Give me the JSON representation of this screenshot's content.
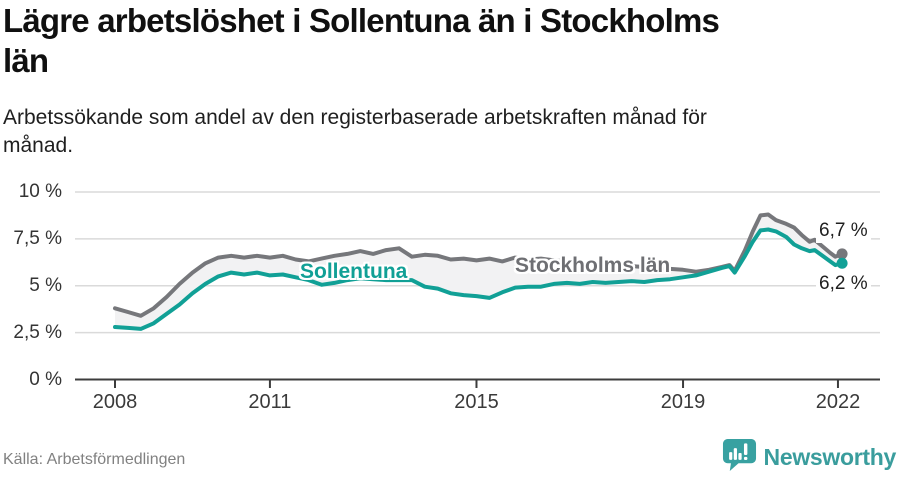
{
  "header": {
    "title_lines": [
      "Lägre arbetslöshet i Sollentuna än i Stockholms",
      "län"
    ],
    "subtitle_lines": [
      "Arbetssökande som andel av den registerbaserade arbetskraften månad för",
      "månad."
    ]
  },
  "chart_data": {
    "type": "line",
    "title": "Lägre arbetslöshet i Sollentuna än i Stockholms län",
    "xlabel": "",
    "ylabel": "",
    "ylim": [
      0,
      10
    ],
    "xlim": [
      2008,
      2022.3
    ],
    "grid": true,
    "legend_position": "inline-labels",
    "area_between_fill": "#f2f2f3",
    "x": [
      2008.0,
      2008.25,
      2008.5,
      2008.75,
      2009.0,
      2009.25,
      2009.5,
      2009.75,
      2010.0,
      2010.25,
      2010.5,
      2010.75,
      2011.0,
      2011.25,
      2011.5,
      2011.75,
      2012.0,
      2012.25,
      2012.5,
      2012.75,
      2013.0,
      2013.25,
      2013.5,
      2013.75,
      2014.0,
      2014.25,
      2014.5,
      2014.75,
      2015.0,
      2015.25,
      2015.5,
      2015.75,
      2016.0,
      2016.25,
      2016.5,
      2016.75,
      2017.0,
      2017.25,
      2017.5,
      2017.75,
      2018.0,
      2018.25,
      2018.5,
      2018.75,
      2019.0,
      2019.25,
      2019.5,
      2019.75,
      2019.9,
      2020.0,
      2020.2,
      2020.35,
      2020.5,
      2020.65,
      2020.8,
      2021.0,
      2021.15,
      2021.3,
      2021.45,
      2021.55,
      2021.7,
      2021.85,
      2021.95,
      2022.08
    ],
    "series": [
      {
        "name": "Stockholms län",
        "color": "#76777b",
        "end_label": "6,7 %",
        "values": [
          3.8,
          3.6,
          3.4,
          3.8,
          4.4,
          5.1,
          5.7,
          6.2,
          6.5,
          6.6,
          6.5,
          6.6,
          6.5,
          6.6,
          6.4,
          6.3,
          6.45,
          6.6,
          6.7,
          6.85,
          6.7,
          6.9,
          7.0,
          6.55,
          6.65,
          6.6,
          6.4,
          6.45,
          6.35,
          6.45,
          6.3,
          6.5,
          6.4,
          6.45,
          6.35,
          6.3,
          6.25,
          6.2,
          6.15,
          6.1,
          6.05,
          6.0,
          5.95,
          5.9,
          5.85,
          5.75,
          5.85,
          6.0,
          6.1,
          5.8,
          6.9,
          7.9,
          8.75,
          8.8,
          8.5,
          8.3,
          8.1,
          7.7,
          7.35,
          7.45,
          7.1,
          6.75,
          6.55,
          6.7
        ]
      },
      {
        "name": "Sollentuna",
        "color": "#11a096",
        "end_label": "6,2 %",
        "values": [
          2.8,
          2.75,
          2.7,
          3.0,
          3.5,
          4.0,
          4.6,
          5.1,
          5.5,
          5.7,
          5.6,
          5.7,
          5.55,
          5.6,
          5.45,
          5.3,
          5.05,
          5.15,
          5.3,
          5.4,
          5.35,
          5.3,
          5.3,
          5.3,
          4.95,
          4.85,
          4.6,
          4.5,
          4.45,
          4.35,
          4.65,
          4.9,
          4.95,
          4.95,
          5.1,
          5.15,
          5.1,
          5.2,
          5.15,
          5.2,
          5.25,
          5.2,
          5.3,
          5.35,
          5.45,
          5.55,
          5.75,
          5.95,
          6.05,
          5.7,
          6.6,
          7.35,
          7.95,
          8.0,
          7.9,
          7.6,
          7.2,
          7.0,
          6.85,
          6.9,
          6.6,
          6.3,
          6.1,
          6.2
        ]
      }
    ],
    "yticks": [
      {
        "value": 0,
        "label": "0 %"
      },
      {
        "value": 2.5,
        "label": "2,5 %"
      },
      {
        "value": 5,
        "label": "5 %"
      },
      {
        "value": 7.5,
        "label": "7,5 %"
      },
      {
        "value": 10,
        "label": "10 %"
      }
    ],
    "xticks": [
      {
        "value": 2008,
        "label": "2008"
      },
      {
        "value": 2011,
        "label": "2011"
      },
      {
        "value": 2015,
        "label": "2015"
      },
      {
        "value": 2019,
        "label": "2019"
      },
      {
        "value": 2022,
        "label": "2022"
      }
    ]
  },
  "colors": {
    "sollentuna": "#11a096",
    "stockholm": "#76777b",
    "grid": "#dadada",
    "axis": "#3c3c3c",
    "brand_teal": "#3a9d9d"
  },
  "footer": {
    "source": "Källa: Arbetsförmedlingen",
    "brand": "Newsworthy"
  }
}
